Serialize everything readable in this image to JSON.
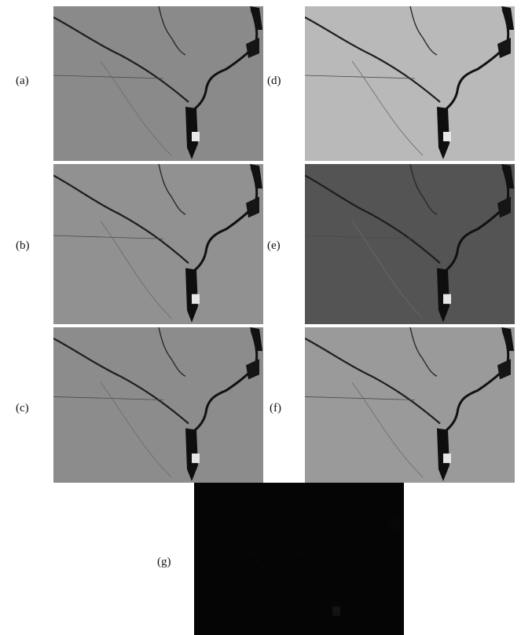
{
  "panels": [
    {
      "label": "(a)"
    },
    {
      "label": "(b)"
    },
    {
      "label": "(c)"
    },
    {
      "label": "(d)"
    },
    {
      "label": "(e)"
    },
    {
      "label": "(f)"
    },
    {
      "label": "(g)"
    }
  ]
}
